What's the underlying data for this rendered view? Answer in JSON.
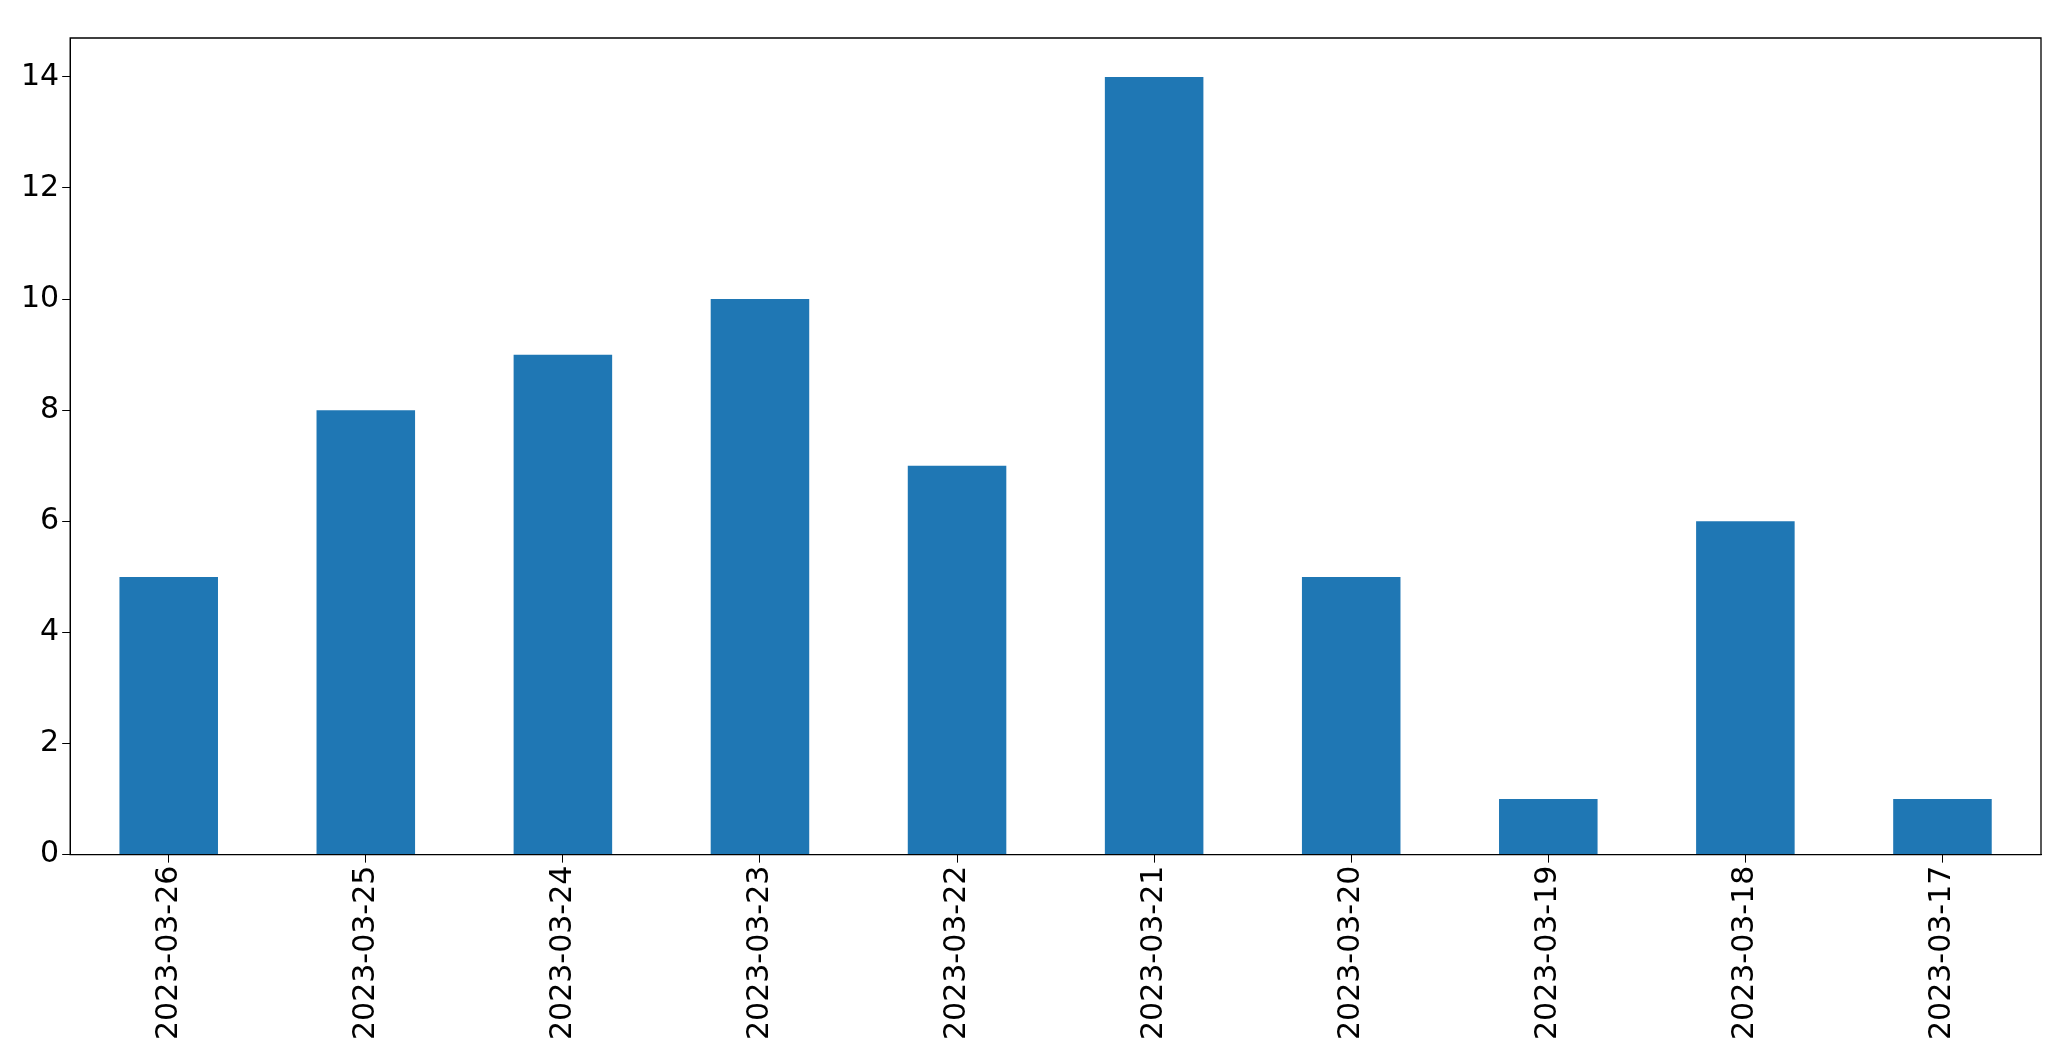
{
  "chart_data": {
    "type": "bar",
    "categories": [
      "2023-03-26",
      "2023-03-25",
      "2023-03-24",
      "2023-03-23",
      "2023-03-22",
      "2023-03-21",
      "2023-03-20",
      "2023-03-19",
      "2023-03-18",
      "2023-03-17"
    ],
    "values": [
      5,
      8,
      9,
      10,
      7,
      14,
      5,
      1,
      6,
      1
    ],
    "color": "#1f77b4",
    "ylim": [
      0,
      14.7
    ],
    "yticks": [
      0,
      2,
      4,
      6,
      8,
      10,
      12,
      14
    ],
    "grid": false,
    "legend": false
  }
}
